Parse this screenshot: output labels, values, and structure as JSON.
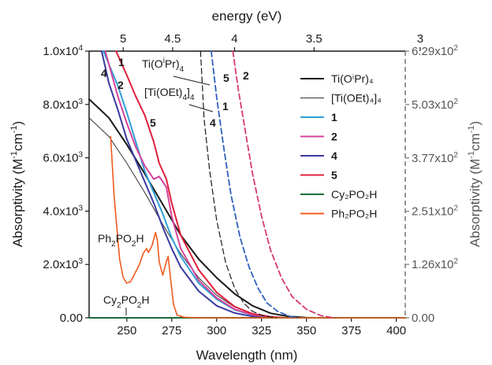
{
  "chart_data": {
    "type": "line",
    "xlabel": "Wavelength (nm)",
    "x_ticks": [
      "250",
      "275",
      "300",
      "325",
      "350",
      "375",
      "400"
    ],
    "xlim": [
      229,
      405
    ],
    "ylabel_left": {
      "base": "Absorptivity (M",
      "sup1": "-1",
      "mid": "cm",
      "sup2": "-1",
      "end": ")"
    },
    "y_left_ticks": [
      {
        "value": 0,
        "mant": "0.00",
        "exp": ""
      },
      {
        "value": 2000,
        "mant": "2.0x10",
        "exp": "3"
      },
      {
        "value": 4000,
        "mant": "4.0x10",
        "exp": "3"
      },
      {
        "value": 6000,
        "mant": "6.0x10",
        "exp": "3"
      },
      {
        "value": 8000,
        "mant": "8.0x10",
        "exp": "3"
      },
      {
        "value": 10000,
        "mant": "1.0x10",
        "exp": "4"
      }
    ],
    "ylim_left": [
      0,
      10000
    ],
    "ylabel_right": {
      "base": "Absorptivity (M",
      "sup1": "-1",
      "mid": "cm",
      "sup2": "-1",
      "end": ")"
    },
    "y_right_ticks": [
      {
        "value": 0,
        "mant": "0.00",
        "exp": ""
      },
      {
        "value": 126,
        "mant": "1.26x10",
        "exp": "2"
      },
      {
        "value": 251,
        "mant": "2.51x10",
        "exp": "2"
      },
      {
        "value": 377,
        "mant": "3.77x10",
        "exp": "2"
      },
      {
        "value": 503,
        "mant": "5.03x10",
        "exp": "2"
      },
      {
        "value": 629,
        "mant": "6.29x10",
        "exp": "2"
      }
    ],
    "ylim_right": [
      0,
      629
    ],
    "xlabel_top": "energy (eV)",
    "top_ticks": [
      {
        "label": "5",
        "ev": 5
      },
      {
        "label": "4.5",
        "ev": 4.5
      },
      {
        "label": "4",
        "ev": 4
      },
      {
        "label": "3.5",
        "ev": 3.5
      },
      {
        "label": "3",
        "ev": 3
      }
    ],
    "legend": [
      {
        "label": "Ti(OⁱPr)₄",
        "color": "#1a1a1a",
        "width": 2
      },
      {
        "label": "[Ti(OEt)₄]₄",
        "color": "#333333",
        "width": 1
      },
      {
        "label": "1",
        "color": "#2e9fd6",
        "width": 2,
        "bold": true
      },
      {
        "label": "2",
        "color": "#d4449b",
        "width": 2,
        "bold": true
      },
      {
        "label": "4",
        "color": "#3a3aa0",
        "width": 2,
        "bold": true
      },
      {
        "label": "5",
        "color": "#e0203c",
        "width": 2,
        "bold": true
      },
      {
        "label": "Cy₂PO₂H",
        "color": "#1d6b3a",
        "width": 2
      },
      {
        "label": "Ph₂PO₂H",
        "color": "#f05a1e",
        "width": 2
      }
    ],
    "series": [
      {
        "key": "ti_iso",
        "axis": "left",
        "dash": false,
        "color": "#1a1a1a",
        "width": 2,
        "points": [
          [
            229,
            8200
          ],
          [
            240,
            7500
          ],
          [
            250,
            6500
          ],
          [
            260,
            5400
          ],
          [
            270,
            4250
          ],
          [
            280,
            3100
          ],
          [
            290,
            2200
          ],
          [
            300,
            1500
          ],
          [
            310,
            900
          ],
          [
            320,
            450
          ],
          [
            330,
            170
          ],
          [
            340,
            50
          ],
          [
            350,
            10
          ],
          [
            355,
            0
          ]
        ]
      },
      {
        "key": "ti_oet",
        "axis": "left",
        "dash": false,
        "color": "#333333",
        "width": 1,
        "points": [
          [
            229,
            7500
          ],
          [
            240,
            6800
          ],
          [
            250,
            5800
          ],
          [
            260,
            4700
          ],
          [
            270,
            3500
          ],
          [
            280,
            2400
          ],
          [
            290,
            1500
          ],
          [
            300,
            850
          ],
          [
            310,
            400
          ],
          [
            320,
            150
          ],
          [
            330,
            40
          ],
          [
            340,
            5
          ],
          [
            345,
            0
          ]
        ]
      },
      {
        "key": "s1",
        "axis": "left",
        "dash": false,
        "color": "#2e9fd6",
        "width": 2,
        "points": [
          [
            237,
            10000
          ],
          [
            245,
            8700
          ],
          [
            250,
            7700
          ],
          [
            255,
            6600
          ],
          [
            260,
            5500
          ],
          [
            265,
            4700
          ],
          [
            270,
            3900
          ],
          [
            275,
            3000
          ],
          [
            280,
            2300
          ],
          [
            290,
            1300
          ],
          [
            300,
            700
          ],
          [
            310,
            300
          ],
          [
            320,
            100
          ],
          [
            330,
            20
          ],
          [
            336,
            0
          ]
        ]
      },
      {
        "key": "s2",
        "axis": "left",
        "dash": false,
        "color": "#d4449b",
        "width": 2,
        "points": [
          [
            238,
            10000
          ],
          [
            245,
            8300
          ],
          [
            250,
            7300
          ],
          [
            255,
            6400
          ],
          [
            260,
            5700
          ],
          [
            265,
            5200
          ],
          [
            268,
            5300
          ],
          [
            272,
            4900
          ],
          [
            275,
            3800
          ],
          [
            280,
            2600
          ],
          [
            290,
            1400
          ],
          [
            300,
            750
          ],
          [
            310,
            320
          ],
          [
            320,
            110
          ],
          [
            330,
            25
          ],
          [
            336,
            0
          ]
        ]
      },
      {
        "key": "s4",
        "axis": "left",
        "dash": false,
        "color": "#3a3aa0",
        "width": 2,
        "points": [
          [
            236,
            10000
          ],
          [
            240,
            8800
          ],
          [
            245,
            7800
          ],
          [
            250,
            6700
          ],
          [
            255,
            5900
          ],
          [
            260,
            5100
          ],
          [
            265,
            4300
          ],
          [
            270,
            3400
          ],
          [
            275,
            2600
          ],
          [
            280,
            1900
          ],
          [
            290,
            1000
          ],
          [
            300,
            450
          ],
          [
            310,
            180
          ],
          [
            320,
            50
          ],
          [
            325,
            10
          ],
          [
            330,
            0
          ]
        ]
      },
      {
        "key": "s5",
        "axis": "left",
        "dash": false,
        "color": "#e0203c",
        "width": 2,
        "points": [
          [
            244,
            10000
          ],
          [
            250,
            9100
          ],
          [
            255,
            8300
          ],
          [
            260,
            7600
          ],
          [
            265,
            6600
          ],
          [
            268,
            5800
          ],
          [
            272,
            5200
          ],
          [
            275,
            4300
          ],
          [
            280,
            3100
          ],
          [
            290,
            1800
          ],
          [
            300,
            950
          ],
          [
            310,
            420
          ],
          [
            320,
            150
          ],
          [
            330,
            40
          ],
          [
            338,
            0
          ]
        ]
      },
      {
        "key": "cy",
        "axis": "left",
        "dash": false,
        "color": "#1d6b3a",
        "width": 2,
        "points": [
          [
            229,
            0
          ],
          [
            405,
            0
          ]
        ]
      },
      {
        "key": "ph",
        "axis": "left",
        "dash": false,
        "color": "#f05a1e",
        "width": 1.6,
        "points": [
          [
            241,
            6800
          ],
          [
            243,
            4500
          ],
          [
            246,
            2200
          ],
          [
            248,
            1500
          ],
          [
            250,
            1300
          ],
          [
            252,
            1350
          ],
          [
            254,
            1600
          ],
          [
            257,
            2000
          ],
          [
            259,
            2400
          ],
          [
            261,
            2600
          ],
          [
            262,
            2450
          ],
          [
            264,
            2700
          ],
          [
            266,
            3200
          ],
          [
            267,
            2900
          ],
          [
            268,
            2100
          ],
          [
            270,
            1600
          ],
          [
            272,
            2100
          ],
          [
            273,
            2300
          ],
          [
            274,
            1700
          ],
          [
            276,
            500
          ],
          [
            278,
            100
          ],
          [
            282,
            20
          ],
          [
            290,
            0
          ],
          [
            405,
            0
          ]
        ]
      },
      {
        "key": "ti_iso_d",
        "axis": "right",
        "dash": true,
        "color": "#1a1a1a",
        "width": 1.2,
        "points": [
          [
            291,
            629
          ],
          [
            293,
            470
          ],
          [
            296,
            350
          ],
          [
            300,
            230
          ],
          [
            305,
            130
          ],
          [
            310,
            70
          ],
          [
            315,
            35
          ],
          [
            320,
            15
          ],
          [
            326,
            5
          ],
          [
            333,
            0
          ]
        ]
      },
      {
        "key": "s1_d",
        "axis": "right",
        "dash": true,
        "color": "#2e5fbf",
        "width": 1.8,
        "points": [
          [
            297,
            629
          ],
          [
            300,
            520
          ],
          [
            304,
            400
          ],
          [
            308,
            290
          ],
          [
            313,
            190
          ],
          [
            318,
            120
          ],
          [
            323,
            70
          ],
          [
            328,
            35
          ],
          [
            334,
            15
          ],
          [
            341,
            3
          ],
          [
            345,
            0
          ]
        ]
      },
      {
        "key": "s2_d",
        "axis": "right",
        "dash": true,
        "color": "#d63a6e",
        "width": 1.8,
        "points": [
          [
            309,
            629
          ],
          [
            312,
            540
          ],
          [
            316,
            440
          ],
          [
            320,
            340
          ],
          [
            325,
            240
          ],
          [
            330,
            160
          ],
          [
            336,
            95
          ],
          [
            342,
            50
          ],
          [
            350,
            20
          ],
          [
            358,
            5
          ],
          [
            365,
            0
          ]
        ]
      }
    ],
    "annotations": {
      "ti_iso_name": {
        "pre": "Ti(O",
        "sup": "i",
        "mid": "Pr)",
        "sub": "4"
      },
      "ti_oet_name": {
        "pre": "[Ti(OEt)",
        "sub1": "4",
        "mid": "]",
        "sub2": "4"
      },
      "ph_name": {
        "a": "Ph",
        "s1": "2",
        "b": "PO",
        "s2": "2",
        "c": "H"
      },
      "cy_name": {
        "a": "Cy",
        "s1": "2",
        "b": "PO",
        "s2": "2",
        "c": "H"
      },
      "n1": "1",
      "n2": "2",
      "n4": "4",
      "n5": "5"
    }
  }
}
